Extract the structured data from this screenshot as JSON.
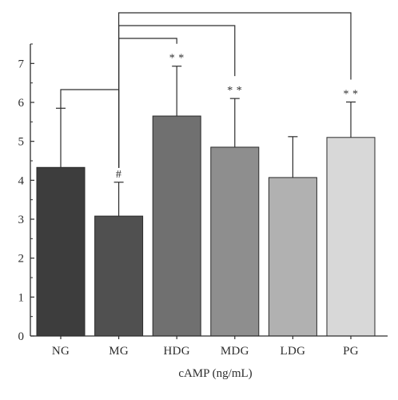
{
  "chart_data": {
    "type": "bar",
    "categories": [
      "NG",
      "MG",
      "HDG",
      "MDG",
      "LDG",
      "PG"
    ],
    "values": [
      4.33,
      3.08,
      5.65,
      4.85,
      4.07,
      5.1
    ],
    "errors": [
      1.52,
      0.87,
      1.28,
      1.25,
      1.05,
      0.91
    ],
    "xlabel": "cAMP (ng/mL)",
    "ylabel": "",
    "ylim": [
      0,
      7.5
    ],
    "yticks": [
      0,
      1,
      2,
      3,
      4,
      5,
      6,
      7
    ],
    "grid": false,
    "bar_colors": [
      "#3d3d3d",
      "#505050",
      "#707070",
      "#8e8e8e",
      "#b1b1b1",
      "#d8d8d8"
    ],
    "annotations": [
      "",
      "#",
      "**",
      "**",
      "",
      "**"
    ],
    "comparisons": [
      {
        "from": "MG",
        "to": "NG"
      },
      {
        "from": "MG",
        "to": "HDG"
      },
      {
        "from": "MG",
        "to": "MDG"
      },
      {
        "from": "MG",
        "to": "PG"
      }
    ]
  }
}
